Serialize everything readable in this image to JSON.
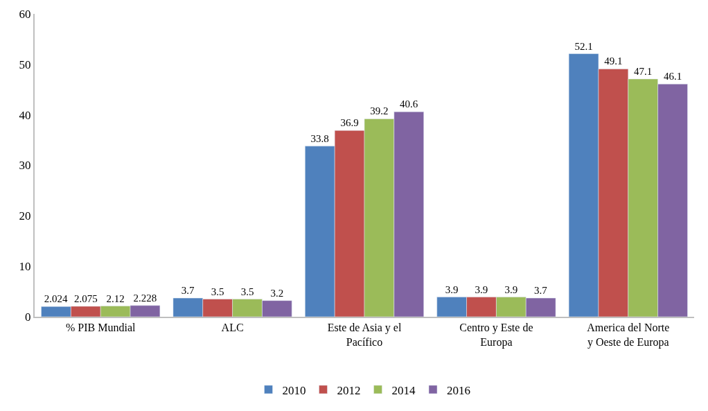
{
  "chart_data": {
    "type": "bar",
    "categories": [
      "% PIB Mundial",
      "ALC",
      "Este de Asia y el Pacífico",
      "Centro y Este de Europa",
      "America del Norte y Oeste de Europa"
    ],
    "series": [
      {
        "name": "2010",
        "color": "#4f81bd",
        "values": [
          2.024,
          3.7,
          33.8,
          3.9,
          52.1
        ]
      },
      {
        "name": "2012",
        "color": "#c0504d",
        "values": [
          2.075,
          3.5,
          36.9,
          3.9,
          49.1
        ]
      },
      {
        "name": "2014",
        "color": "#9bbb59",
        "values": [
          2.12,
          3.5,
          39.2,
          3.9,
          47.1
        ]
      },
      {
        "name": "2016",
        "color": "#8064a2",
        "values": [
          2.228,
          3.2,
          40.6,
          3.7,
          46.1
        ]
      }
    ],
    "ylim": [
      0,
      60
    ],
    "yticks": [
      0,
      10,
      20,
      30,
      40,
      50,
      60
    ],
    "data_labels": true,
    "grid": false,
    "legend": "bottom"
  }
}
